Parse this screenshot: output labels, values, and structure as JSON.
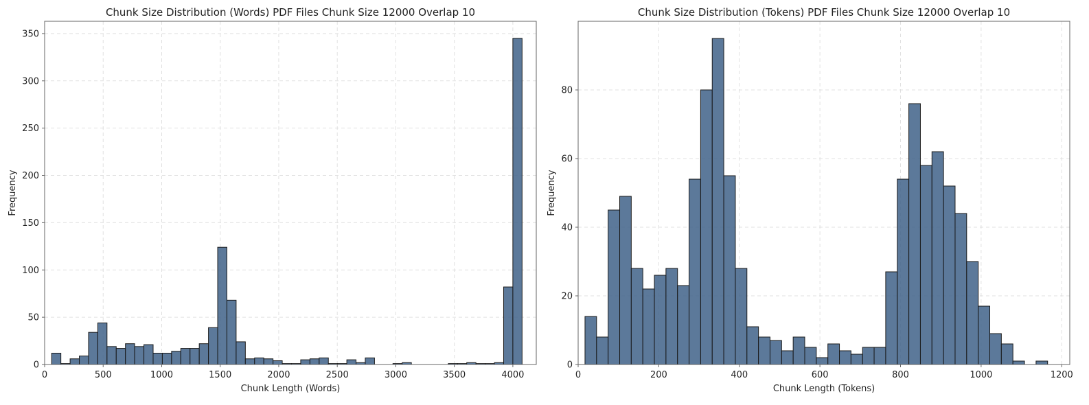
{
  "chart_data": [
    {
      "type": "bar",
      "subtype": "histogram",
      "title": "Chunk Size Distribution (Words) PDF Files Chunk Size 12000 Overlap 10",
      "xlabel": "Chunk Length (Words)",
      "ylabel": "Frequency",
      "xlim": [
        0,
        4200
      ],
      "ylim": [
        0,
        363
      ],
      "xticks": [
        0,
        500,
        1000,
        1500,
        2000,
        2500,
        3000,
        3500,
        4000
      ],
      "yticks": [
        0,
        50,
        100,
        150,
        200,
        250,
        300,
        350
      ],
      "grid": true,
      "bar_color": "#3f6288",
      "edge_color": "#1a1a1a",
      "bin_start": 60,
      "bin_width": 78.8,
      "values": [
        12,
        1,
        6,
        9,
        34,
        44,
        19,
        17,
        22,
        19,
        21,
        12,
        12,
        14,
        17,
        17,
        22,
        39,
        124,
        68,
        24,
        6,
        7,
        6,
        4,
        1,
        1,
        5,
        6,
        7,
        1,
        1,
        5,
        2,
        7,
        0,
        0,
        1,
        2,
        0,
        0,
        0,
        0,
        1,
        1,
        2,
        1,
        1,
        2,
        82,
        345
      ]
    },
    {
      "type": "bar",
      "subtype": "histogram",
      "title": "Chunk Size Distribution (Tokens) PDF Files Chunk Size 12000 Overlap 10",
      "xlabel": "Chunk Length (Tokens)",
      "ylabel": "Frequency",
      "xlim": [
        0,
        1220
      ],
      "ylim": [
        0,
        100
      ],
      "xticks": [
        0,
        200,
        400,
        600,
        800,
        1000,
        1200
      ],
      "yticks": [
        0,
        20,
        40,
        60,
        80
      ],
      "grid": true,
      "bar_color": "#3f6288",
      "edge_color": "#1a1a1a",
      "bin_start": 17,
      "bin_width": 28.7,
      "values": [
        14,
        8,
        45,
        49,
        28,
        22,
        26,
        28,
        23,
        54,
        80,
        95,
        55,
        28,
        11,
        8,
        7,
        4,
        8,
        5,
        2,
        6,
        4,
        3,
        5,
        5,
        27,
        54,
        76,
        58,
        62,
        52,
        44,
        30,
        17,
        9,
        6,
        1,
        0,
        1
      ]
    }
  ]
}
